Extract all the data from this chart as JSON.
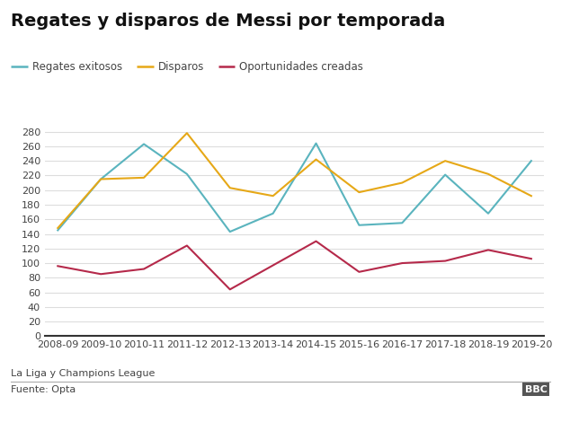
{
  "title": "Regates y disparos de Messi por temporada",
  "seasons": [
    "2008-09",
    "2009-10",
    "2010-11",
    "2011-12",
    "2012-13",
    "2013-14",
    "2014-15",
    "2015-16",
    "2016-17",
    "2017-18",
    "2018-19",
    "2019-20"
  ],
  "regates": [
    145,
    215,
    263,
    222,
    143,
    168,
    264,
    152,
    155,
    221,
    168,
    240
  ],
  "disparos": [
    148,
    215,
    217,
    278,
    203,
    192,
    242,
    197,
    210,
    240,
    222,
    192
  ],
  "oportunidades": [
    96,
    85,
    92,
    124,
    64,
    97,
    130,
    88,
    100,
    103,
    118,
    106
  ],
  "legend_labels": [
    "Regates exitosos",
    "Disparos",
    "Oportunidades creadas"
  ],
  "colors": [
    "#5ab4be",
    "#e6a817",
    "#b5294a"
  ],
  "yticks": [
    0,
    20,
    40,
    60,
    80,
    100,
    120,
    140,
    160,
    180,
    200,
    220,
    240,
    260,
    280
  ],
  "subtitle1": "La Liga y Champions League",
  "subtitle2": "Fuente: Opta",
  "bbc_text": "BBC",
  "background_color": "#ffffff",
  "line_width": 1.5,
  "title_fontsize": 14,
  "legend_fontsize": 8.5,
  "tick_fontsize": 8,
  "footer_fontsize": 8
}
